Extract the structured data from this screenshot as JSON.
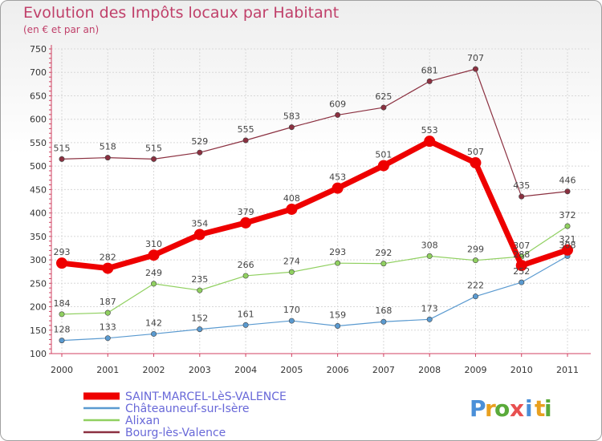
{
  "header": {
    "title": "Evolution des Impôts locaux par Habitant",
    "subtitle": "(en € et par an)"
  },
  "logo": {
    "text": "Proxiti",
    "letters": [
      {
        "ch": "P",
        "color": "#4a8fd8"
      },
      {
        "ch": "r",
        "color": "#e8a020"
      },
      {
        "ch": "o",
        "color": "#5aaa3a"
      },
      {
        "ch": "x",
        "color": "#e85050"
      },
      {
        "ch": "i",
        "color": "#4a8fd8"
      },
      {
        "ch": "t",
        "color": "#e8a020"
      },
      {
        "ch": "i",
        "color": "#5aaa3a"
      }
    ]
  },
  "chart_data": {
    "type": "line",
    "x": [
      "2000",
      "2001",
      "2002",
      "2003",
      "2004",
      "2005",
      "2006",
      "2007",
      "2008",
      "2009",
      "2010",
      "2011"
    ],
    "ylim": [
      100,
      750
    ],
    "yticks": [
      100,
      150,
      200,
      250,
      300,
      350,
      400,
      450,
      500,
      550,
      600,
      650,
      700,
      750
    ],
    "grid": true,
    "legend_position": "bottom-left",
    "series": [
      {
        "name": "SAINT-MARCEL-LèS-VALENCE",
        "color": "#ee0000",
        "values": [
          293,
          282,
          310,
          354,
          379,
          408,
          453,
          501,
          553,
          507,
          288,
          321
        ]
      },
      {
        "name": "Châteauneuf-sur-Isère",
        "color": "#5a9ad0",
        "values": [
          128,
          133,
          142,
          152,
          161,
          170,
          159,
          168,
          173,
          222,
          252,
          308
        ]
      },
      {
        "name": "Alixan",
        "color": "#90d060",
        "values": [
          184,
          187,
          249,
          235,
          266,
          274,
          293,
          292,
          308,
          299,
          307,
          372
        ]
      },
      {
        "name": "Bourg-lès-Valence",
        "color": "#8b3040",
        "values": [
          515,
          518,
          515,
          529,
          555,
          583,
          609,
          625,
          681,
          707,
          435,
          446
        ]
      }
    ]
  }
}
